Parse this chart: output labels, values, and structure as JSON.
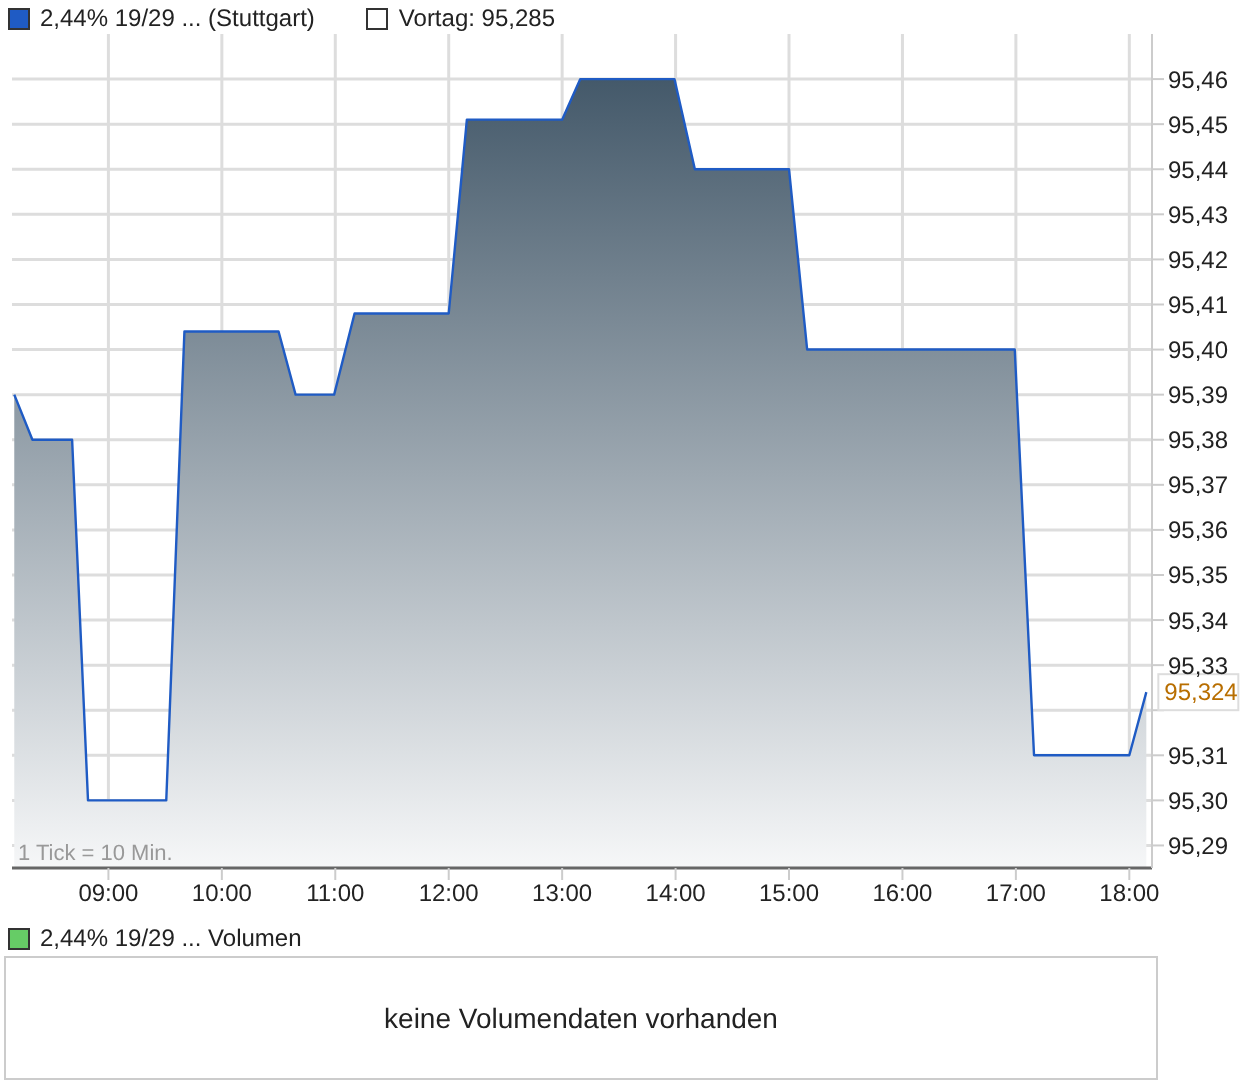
{
  "chart_data": [
    {
      "type": "area",
      "legend": "top left",
      "grid": true,
      "x": [
        8.17,
        8.33,
        8.68,
        8.82,
        9.51,
        9.67,
        10.5,
        10.65,
        10.99,
        11.17,
        12.0,
        12.16,
        13.0,
        13.16,
        13.99,
        14.17,
        15.0,
        15.16,
        16.99,
        17.16,
        18.0,
        18.15
      ],
      "series": [
        {
          "name": "2,44% 19/29 ... (Stuttgart)",
          "color": "#1f5bc4",
          "values": [
            95.39,
            95.38,
            95.38,
            95.3,
            95.3,
            95.404,
            95.404,
            95.39,
            95.39,
            95.408,
            95.408,
            95.451,
            95.451,
            95.46,
            95.46,
            95.44,
            95.44,
            95.4,
            95.4,
            95.31,
            95.31,
            95.324
          ]
        }
      ],
      "xlim": [
        8.15,
        18.2
      ],
      "xticks": [
        {
          "value": 9,
          "label": "09:00"
        },
        {
          "value": 10,
          "label": "10:00"
        },
        {
          "value": 11,
          "label": "11:00"
        },
        {
          "value": 12,
          "label": "12:00"
        },
        {
          "value": 13,
          "label": "13:00"
        },
        {
          "value": 14,
          "label": "14:00"
        },
        {
          "value": 15,
          "label": "15:00"
        },
        {
          "value": 16,
          "label": "16:00"
        },
        {
          "value": 17,
          "label": "17:00"
        },
        {
          "value": 18,
          "label": "18:00"
        }
      ],
      "ylim": [
        95.285,
        95.47
      ],
      "yticks": [
        {
          "value": 95.29,
          "label": "95,29"
        },
        {
          "value": 95.3,
          "label": "95,30"
        },
        {
          "value": 95.31,
          "label": "95,31"
        },
        {
          "value": 95.32,
          "label": null
        },
        {
          "value": 95.33,
          "label": "95,33"
        },
        {
          "value": 95.34,
          "label": "95,34"
        },
        {
          "value": 95.35,
          "label": "95,35"
        },
        {
          "value": 95.36,
          "label": "95,36"
        },
        {
          "value": 95.37,
          "label": "95,37"
        },
        {
          "value": 95.38,
          "label": "95,38"
        },
        {
          "value": 95.39,
          "label": "95,39"
        },
        {
          "value": 95.4,
          "label": "95,40"
        },
        {
          "value": 95.41,
          "label": "95,41"
        },
        {
          "value": 95.42,
          "label": "95,42"
        },
        {
          "value": 95.43,
          "label": "95,43"
        },
        {
          "value": 95.44,
          "label": "95,44"
        },
        {
          "value": 95.45,
          "label": "95,45"
        },
        {
          "value": 95.46,
          "label": "95,46"
        }
      ],
      "annotations": [
        "Vortag: 95,285",
        "1 Tick = 10 Min.",
        {
          "text": "95,324",
          "x": 18.15,
          "y": 95.324
        }
      ]
    },
    {
      "type": "other",
      "title": "2,44% 19/29 ... Volumen",
      "annotations": [
        "keine Volumendaten vorhanden"
      ]
    }
  ]
}
